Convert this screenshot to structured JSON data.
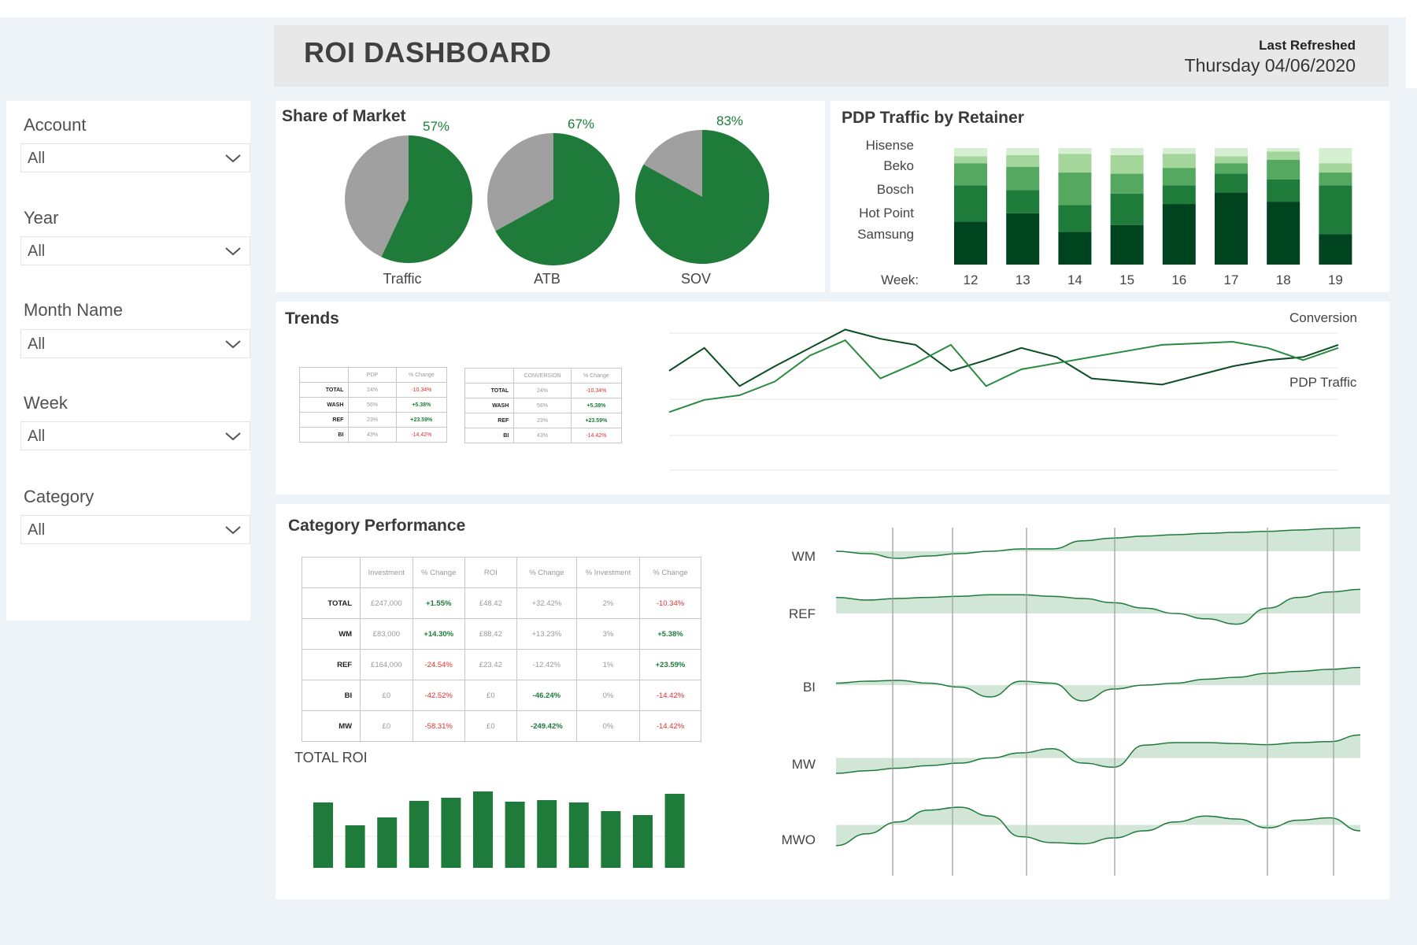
{
  "header": {
    "title": "ROI DASHBOARD",
    "last_refreshed_label": "Last Refreshed",
    "last_refreshed_value": "Thursday 04/06/2020"
  },
  "filters": [
    {
      "label": "Account",
      "value": "All"
    },
    {
      "label": "Year",
      "value": "All"
    },
    {
      "label": "Month Name",
      "value": "All"
    },
    {
      "label": "Week",
      "value": "All"
    },
    {
      "label": "Category",
      "value": "All"
    }
  ],
  "colors": {
    "green": "#1e7b3a",
    "gray": "#a0a0a0",
    "greens": [
      "#00431f",
      "#1e7b3a",
      "#55a860",
      "#a4d59a",
      "#d6efd2"
    ],
    "area_fill": "#d2e6d8",
    "area_line": "#1e7b3a"
  },
  "share_of_market": {
    "title": "Share of Market",
    "chart_data": {
      "type": "pie",
      "slices": [
        {
          "label": "Traffic",
          "value": 57,
          "value_text": "57%"
        },
        {
          "label": "ATB",
          "value": 67,
          "value_text": "67%"
        },
        {
          "label": "SOV",
          "value": 83,
          "value_text": "83%"
        }
      ]
    }
  },
  "pdp_traffic": {
    "title": "PDP Traffic by Retainer",
    "chart_data": {
      "type": "bar",
      "stacked": true,
      "x_label": "Week:",
      "categories": [
        "12",
        "13",
        "14",
        "15",
        "16",
        "17",
        "18",
        "19"
      ],
      "series": [
        {
          "name": "Samsung",
          "values": [
            37,
            44,
            28,
            34,
            52,
            62,
            54,
            26
          ]
        },
        {
          "name": "Hot Point",
          "values": [
            31,
            20,
            23,
            27,
            16,
            16,
            19,
            42
          ]
        },
        {
          "name": "Bosch",
          "values": [
            19,
            20,
            28,
            17,
            15,
            9,
            17,
            11
          ]
        },
        {
          "name": "Beko",
          "values": [
            6,
            10,
            16,
            16,
            12,
            6,
            7,
            8
          ]
        },
        {
          "name": "Hisense",
          "values": [
            7,
            6,
            5,
            6,
            5,
            7,
            3,
            13
          ]
        }
      ],
      "legend": "left",
      "ylim": [
        0,
        100
      ]
    }
  },
  "trends": {
    "title": "Trends",
    "table_pdp": {
      "headers": [
        "",
        "PDP",
        "% Change"
      ],
      "rows": [
        {
          "label": "TOTAL",
          "value": "24%",
          "change": "-10.34%"
        },
        {
          "label": "WASH",
          "value": "56%",
          "change": "+5.38%"
        },
        {
          "label": "REF",
          "value": "23%",
          "change": "+23.59%"
        },
        {
          "label": "BI",
          "value": "43%",
          "change": "-14.42%"
        }
      ]
    },
    "table_conversion": {
      "headers": [
        "",
        "CONVERSION",
        "% Change"
      ],
      "rows": [
        {
          "label": "TOTAL",
          "value": "24%",
          "change": "-10.34%"
        },
        {
          "label": "WASH",
          "value": "56%",
          "change": "+5.38%"
        },
        {
          "label": "REF",
          "value": "23%",
          "change": "+23.59%"
        },
        {
          "label": "BI",
          "value": "43%",
          "change": "-14.42%"
        }
      ]
    },
    "chart_data": {
      "type": "line",
      "x": [
        1,
        2,
        3,
        4,
        5,
        6,
        7,
        8,
        9,
        10,
        11,
        12,
        13,
        14,
        15,
        16,
        17,
        18,
        19,
        20
      ],
      "ylim": [
        0,
        100
      ],
      "grid": true,
      "series": [
        {
          "name": "Conversion",
          "values": [
            65,
            80,
            55,
            68,
            80,
            92,
            86,
            82,
            65,
            72,
            80,
            74,
            60,
            58,
            56,
            62,
            68,
            72,
            74,
            82
          ]
        },
        {
          "name": "PDP Traffic",
          "values": [
            38,
            46,
            49,
            58,
            75,
            85,
            60,
            70,
            82,
            55,
            66,
            70,
            74,
            78,
            82,
            83,
            84,
            80,
            72,
            80
          ]
        }
      ]
    }
  },
  "category_performance": {
    "title": "Category Performance",
    "table": {
      "headers": [
        "",
        "Investment",
        "% Change",
        "ROI",
        "% Change",
        "% Investment",
        "% Change"
      ],
      "rows": [
        {
          "label": "TOTAL",
          "cells": [
            "£247,000",
            "+1.55%",
            "£48.42",
            "+32.42%",
            "2%",
            "-10.34%"
          ]
        },
        {
          "label": "WM",
          "cells": [
            "£83,000",
            "+14.30%",
            "£88,42",
            "+13.23%",
            "3%",
            "+5.38%"
          ]
        },
        {
          "label": "REF",
          "cells": [
            "£164,000",
            "-24.54%",
            "£23.42",
            "-12.42%",
            "1%",
            "+23.59%"
          ]
        },
        {
          "label": "BI",
          "cells": [
            "£0",
            "-42.52%",
            "£0",
            "-46.24%",
            "0%",
            "-14.42%"
          ]
        },
        {
          "label": "MW",
          "cells": [
            "£0",
            "-58.31%",
            "£0",
            "-249.42%",
            "0%",
            "-14.42%"
          ]
        }
      ]
    },
    "total_roi": {
      "label": "TOTAL ROI",
      "chart_data": {
        "type": "bar",
        "values": [
          83,
          54,
          64,
          85,
          89,
          97,
          84,
          86,
          83,
          72,
          67,
          94
        ],
        "ylim": [
          0,
          100
        ]
      }
    },
    "chart_data": {
      "type": "area",
      "series": [
        {
          "name": "WM",
          "values": [
            50,
            45,
            35,
            40,
            45,
            50,
            55,
            55,
            72,
            78,
            82,
            85,
            88,
            90,
            92,
            95,
            98,
            100
          ]
        },
        {
          "name": "REF",
          "values": [
            80,
            75,
            78,
            80,
            82,
            85,
            85,
            82,
            78,
            70,
            60,
            50,
            40,
            30,
            60,
            80,
            90,
            95
          ]
        },
        {
          "name": "BI",
          "values": [
            55,
            60,
            62,
            55,
            45,
            20,
            60,
            55,
            10,
            40,
            50,
            55,
            65,
            70,
            80,
            85,
            90,
            95
          ]
        },
        {
          "name": "MW",
          "values": [
            20,
            25,
            30,
            35,
            40,
            50,
            60,
            68,
            40,
            32,
            75,
            80,
            80,
            78,
            76,
            80,
            82,
            95
          ]
        },
        {
          "name": "MWO",
          "values": [
            15,
            35,
            55,
            75,
            80,
            65,
            30,
            20,
            18,
            28,
            40,
            55,
            65,
            60,
            45,
            58,
            62,
            40
          ]
        }
      ],
      "baseline": 50
    }
  }
}
